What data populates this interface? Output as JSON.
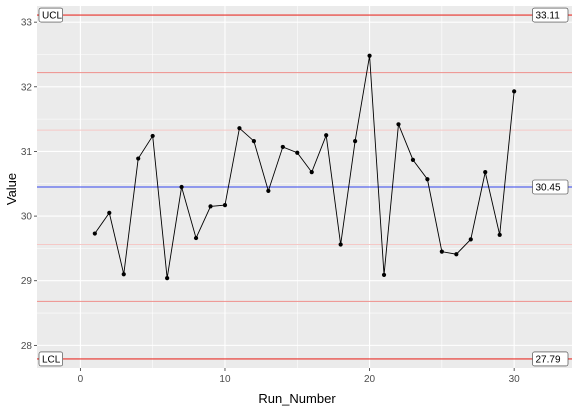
{
  "chart_data": {
    "type": "line",
    "title": "",
    "xlabel": "Run_Number",
    "ylabel": "Value",
    "xlim": [
      -3,
      34
    ],
    "ylim": [
      27.65,
      33.25
    ],
    "x_ticks": [
      "0",
      "10",
      "20",
      "30"
    ],
    "y_ticks": [
      "28",
      "29",
      "30",
      "31",
      "32",
      "33"
    ],
    "grid": true,
    "series": [
      {
        "x": [
          1,
          2,
          3,
          4,
          5,
          6,
          7,
          8,
          9,
          10,
          11,
          12,
          13,
          14,
          15,
          16,
          17,
          18,
          19,
          20,
          21,
          22,
          23,
          24,
          25,
          26,
          27,
          28,
          29,
          30
        ],
        "values": [
          29.73,
          30.05,
          29.1,
          30.89,
          31.24,
          29.04,
          30.45,
          29.66,
          30.15,
          30.17,
          31.36,
          31.16,
          30.39,
          31.07,
          30.98,
          30.68,
          31.25,
          29.56,
          31.16,
          32.48,
          29.09,
          31.42,
          30.87,
          30.57,
          29.45,
          29.41,
          29.64,
          30.68,
          29.71,
          31.93
        ]
      }
    ],
    "control_lines": {
      "ucl": {
        "label": "UCL",
        "value": 33.11,
        "value_label": "33.11"
      },
      "center": {
        "value": 30.45,
        "value_label": "30.45"
      },
      "lcl": {
        "label": "LCL",
        "value": 27.79,
        "value_label": "27.79"
      },
      "two_sigma": [
        32.22,
        28.68
      ],
      "one_sigma": [
        31.33,
        29.56
      ]
    },
    "colors": {
      "panel": "#ebebeb",
      "grid": "#ffffff",
      "limit": "#e8312a",
      "two_sigma": "#ee8f8b",
      "one_sigma": "#f5c8c6",
      "center": "#3344ee",
      "series": "#000000"
    }
  }
}
